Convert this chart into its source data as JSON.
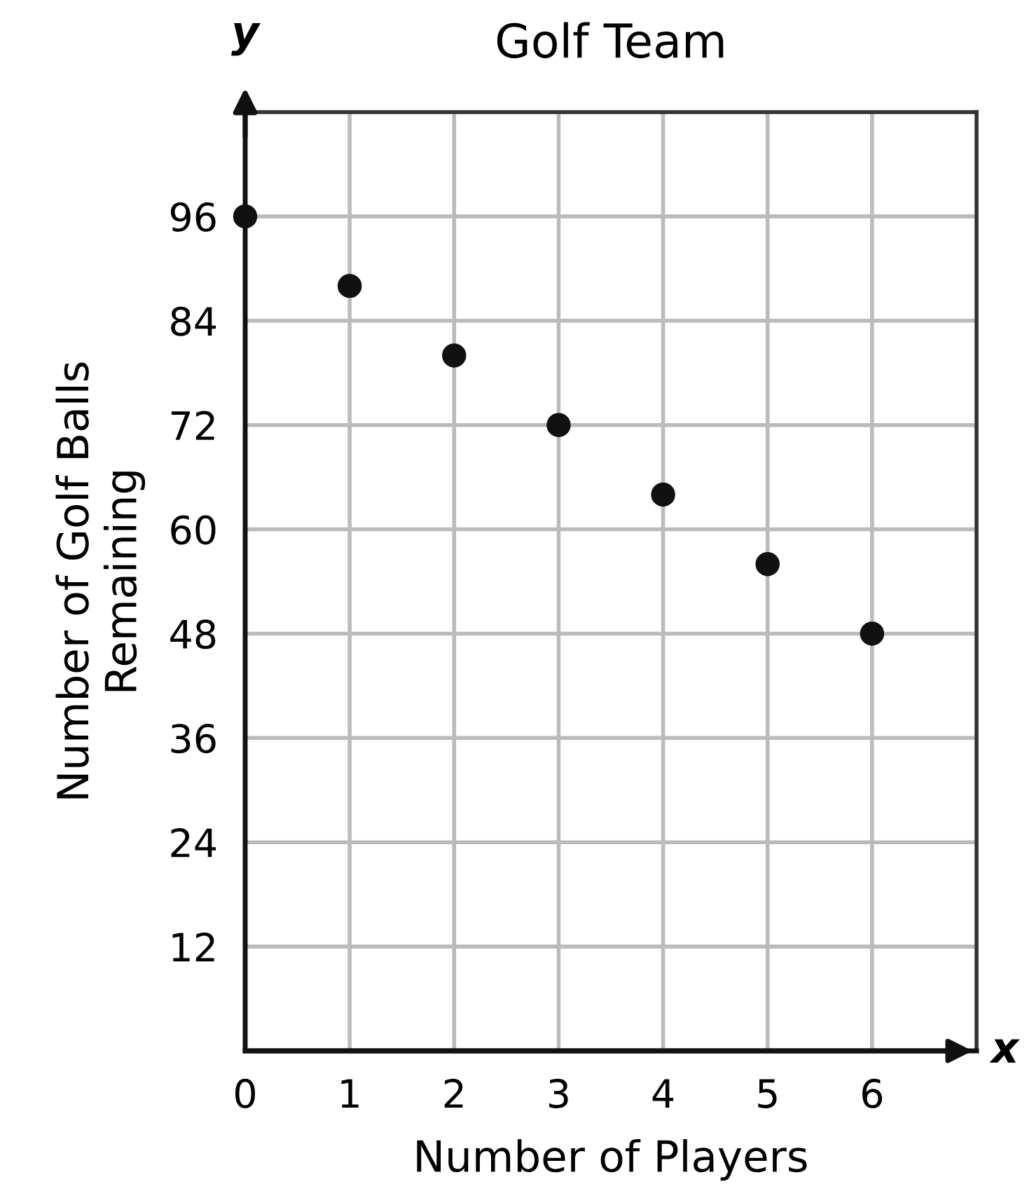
{
  "chart_data": {
    "type": "scatter",
    "title": "Golf Team",
    "xlabel": "Number of Players",
    "ylabel": "Number of Golf Balls\nRemaining",
    "x": [
      0,
      1,
      2,
      3,
      4,
      5,
      6
    ],
    "series": [
      {
        "color": "#111111",
        "values": [
          96,
          88,
          80,
          72,
          64,
          56,
          48
        ]
      }
    ],
    "xlim": [
      0,
      7
    ],
    "ylim": [
      0,
      108
    ],
    "xticks": [
      0,
      1,
      2,
      3,
      4,
      5,
      6,
      {
        "value": 7,
        "label": null
      }
    ],
    "yticks": [
      {
        "value": 0,
        "label": null
      },
      12,
      24,
      36,
      48,
      60,
      72,
      84,
      96,
      {
        "value": 108,
        "label": null
      }
    ],
    "grid": true,
    "marker": "circle",
    "annotations": [
      "y",
      "x"
    ]
  }
}
